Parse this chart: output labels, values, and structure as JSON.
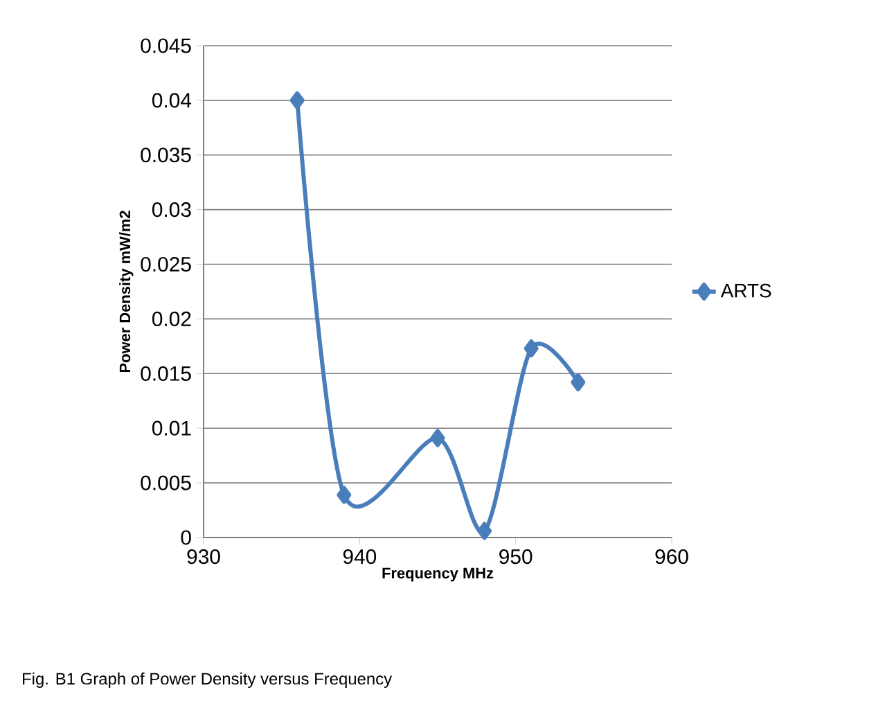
{
  "chart_data": {
    "type": "line",
    "xlabel": "Frequency MHz",
    "ylabel": "Power Density mW/m2",
    "x": [
      936,
      939,
      945,
      948,
      951,
      954
    ],
    "series": [
      {
        "name": "ARTS",
        "color": "#4a7ebb",
        "values": [
          0.04,
          0.0039,
          0.0091,
          0.0006,
          0.0173,
          0.0142
        ]
      }
    ],
    "xlim": [
      930,
      960
    ],
    "xticks": [
      930,
      940,
      950,
      960
    ],
    "ylim": [
      0,
      0.045
    ],
    "yticks": [
      0,
      0.005,
      0.01,
      0.015,
      0.02,
      0.025,
      0.03,
      0.035,
      0.04,
      0.045
    ],
    "grid": "y",
    "legend": "right",
    "marker": "diamond",
    "line_style": "solid",
    "annotations": [
      "Fig. B1 Graph of Power Density versus Frequency"
    ]
  }
}
